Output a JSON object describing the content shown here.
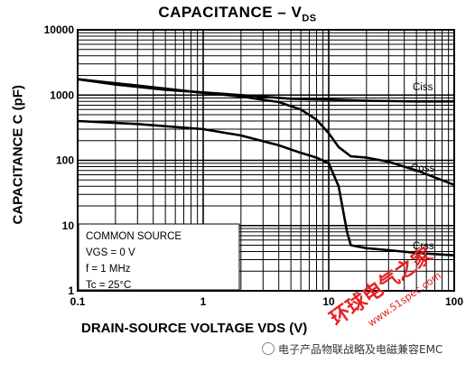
{
  "chart_data": {
    "type": "line",
    "title": "CAPACITANCE – V",
    "title_sub": "DS",
    "xlabel": "DRAIN-SOURCE VOLTAGE   VDS  (V)",
    "ylabel": "CAPACITANCE  C  (pF)",
    "xscale": "log",
    "yscale": "log",
    "xlim": [
      0.1,
      100
    ],
    "ylim": [
      1,
      10000
    ],
    "grid": true,
    "x_ticks": [
      "0.1",
      "1",
      "10",
      "100"
    ],
    "y_ticks": [
      "1",
      "10",
      "100",
      "1000",
      "10000"
    ],
    "series": [
      {
        "name": "Ciss",
        "points": [
          [
            0.1,
            1750
          ],
          [
            0.2,
            1450
          ],
          [
            0.5,
            1200
          ],
          [
            1,
            1100
          ],
          [
            2,
            1000
          ],
          [
            5,
            880
          ],
          [
            10,
            850
          ],
          [
            20,
            820
          ],
          [
            50,
            800
          ],
          [
            100,
            800
          ]
        ]
      },
      {
        "name": "Coss",
        "points": [
          [
            0.1,
            1750
          ],
          [
            0.3,
            1400
          ],
          [
            1,
            1080
          ],
          [
            2,
            950
          ],
          [
            4,
            780
          ],
          [
            6,
            600
          ],
          [
            8,
            420
          ],
          [
            10,
            260
          ],
          [
            12,
            160
          ],
          [
            15,
            115
          ],
          [
            20,
            110
          ],
          [
            30,
            95
          ],
          [
            50,
            70
          ],
          [
            100,
            42
          ]
        ]
      },
      {
        "name": "Crss",
        "points": [
          [
            0.1,
            400
          ],
          [
            0.3,
            360
          ],
          [
            1,
            300
          ],
          [
            2,
            240
          ],
          [
            4,
            170
          ],
          [
            6,
            130
          ],
          [
            8,
            110
          ],
          [
            10,
            90
          ],
          [
            12,
            40
          ],
          [
            14,
            8
          ],
          [
            15,
            5
          ],
          [
            20,
            4.5
          ],
          [
            30,
            4.2
          ],
          [
            50,
            3.8
          ],
          [
            100,
            3.5
          ]
        ]
      }
    ],
    "annotation": {
      "lines": [
        "COMMON SOURCE",
        "VGS = 0 V",
        "f = 1 MHz",
        "Tc = 25°C"
      ]
    }
  },
  "watermark": {
    "text": "环球电气之家",
    "url": "www.51spec.com"
  },
  "footer": {
    "text": "电子产品物联战略及电磁兼容EMC"
  }
}
